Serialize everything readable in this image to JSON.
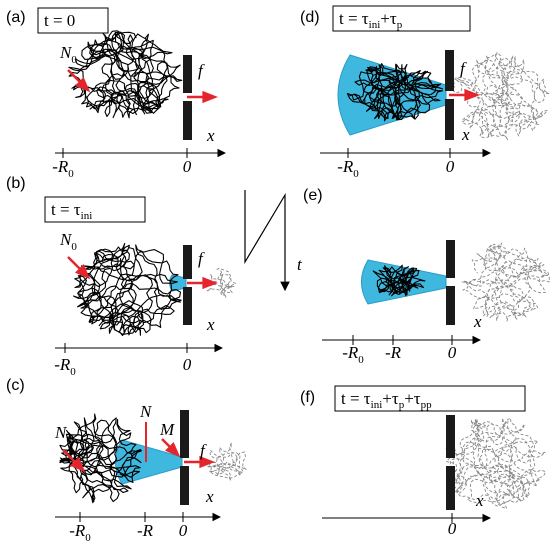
{
  "panels": [
    {
      "label": "(a)",
      "time": [
        {
          "text": "t = 0"
        }
      ],
      "chain_label": {
        "main": "N",
        "sub": "0"
      },
      "force": "f",
      "axis": "x",
      "ticks": [
        {
          "main": "-R",
          "sub": "0"
        },
        {
          "main": "0"
        }
      ]
    },
    {
      "label": "(b)",
      "time": [
        {
          "text": "t = τ",
          "sub": "ini"
        }
      ],
      "chain_label": {
        "main": "N",
        "sub": "0"
      },
      "force": "f",
      "axis": "x",
      "ticks": [
        {
          "main": "-R",
          "sub": "0"
        },
        {
          "main": "0"
        }
      ]
    },
    {
      "label": "(c)",
      "chain_label": {
        "main": "N",
        "sub": "0"
      },
      "pore_count": "N",
      "trans_count": "M",
      "force": "f",
      "axis": "x",
      "ticks": [
        {
          "main": "-R",
          "sub": "0"
        },
        {
          "main": "-R"
        },
        {
          "main": "0"
        }
      ]
    },
    {
      "label": "(d)",
      "time": [
        {
          "text": "t = τ",
          "sub": "ini"
        },
        {
          "text": "+τ",
          "sub": "p"
        }
      ],
      "force": "f",
      "axis": "x",
      "ticks": [
        {
          "main": "-R",
          "sub": "0"
        },
        {
          "main": "0"
        }
      ]
    },
    {
      "label": "(e)",
      "axis": "x",
      "ticks": [
        {
          "main": "-R",
          "sub": "0"
        },
        {
          "main": "-R"
        },
        {
          "main": "0"
        }
      ]
    },
    {
      "label": "(f)",
      "time": [
        {
          "text": "t = τ",
          "sub": "ini"
        },
        {
          "text": "+τ",
          "sub": "p"
        },
        {
          "text": "+τ",
          "sub": "pp"
        }
      ],
      "axis": "x",
      "ticks": [
        {
          "main": "0"
        }
      ]
    }
  ],
  "time_arrow": "t"
}
